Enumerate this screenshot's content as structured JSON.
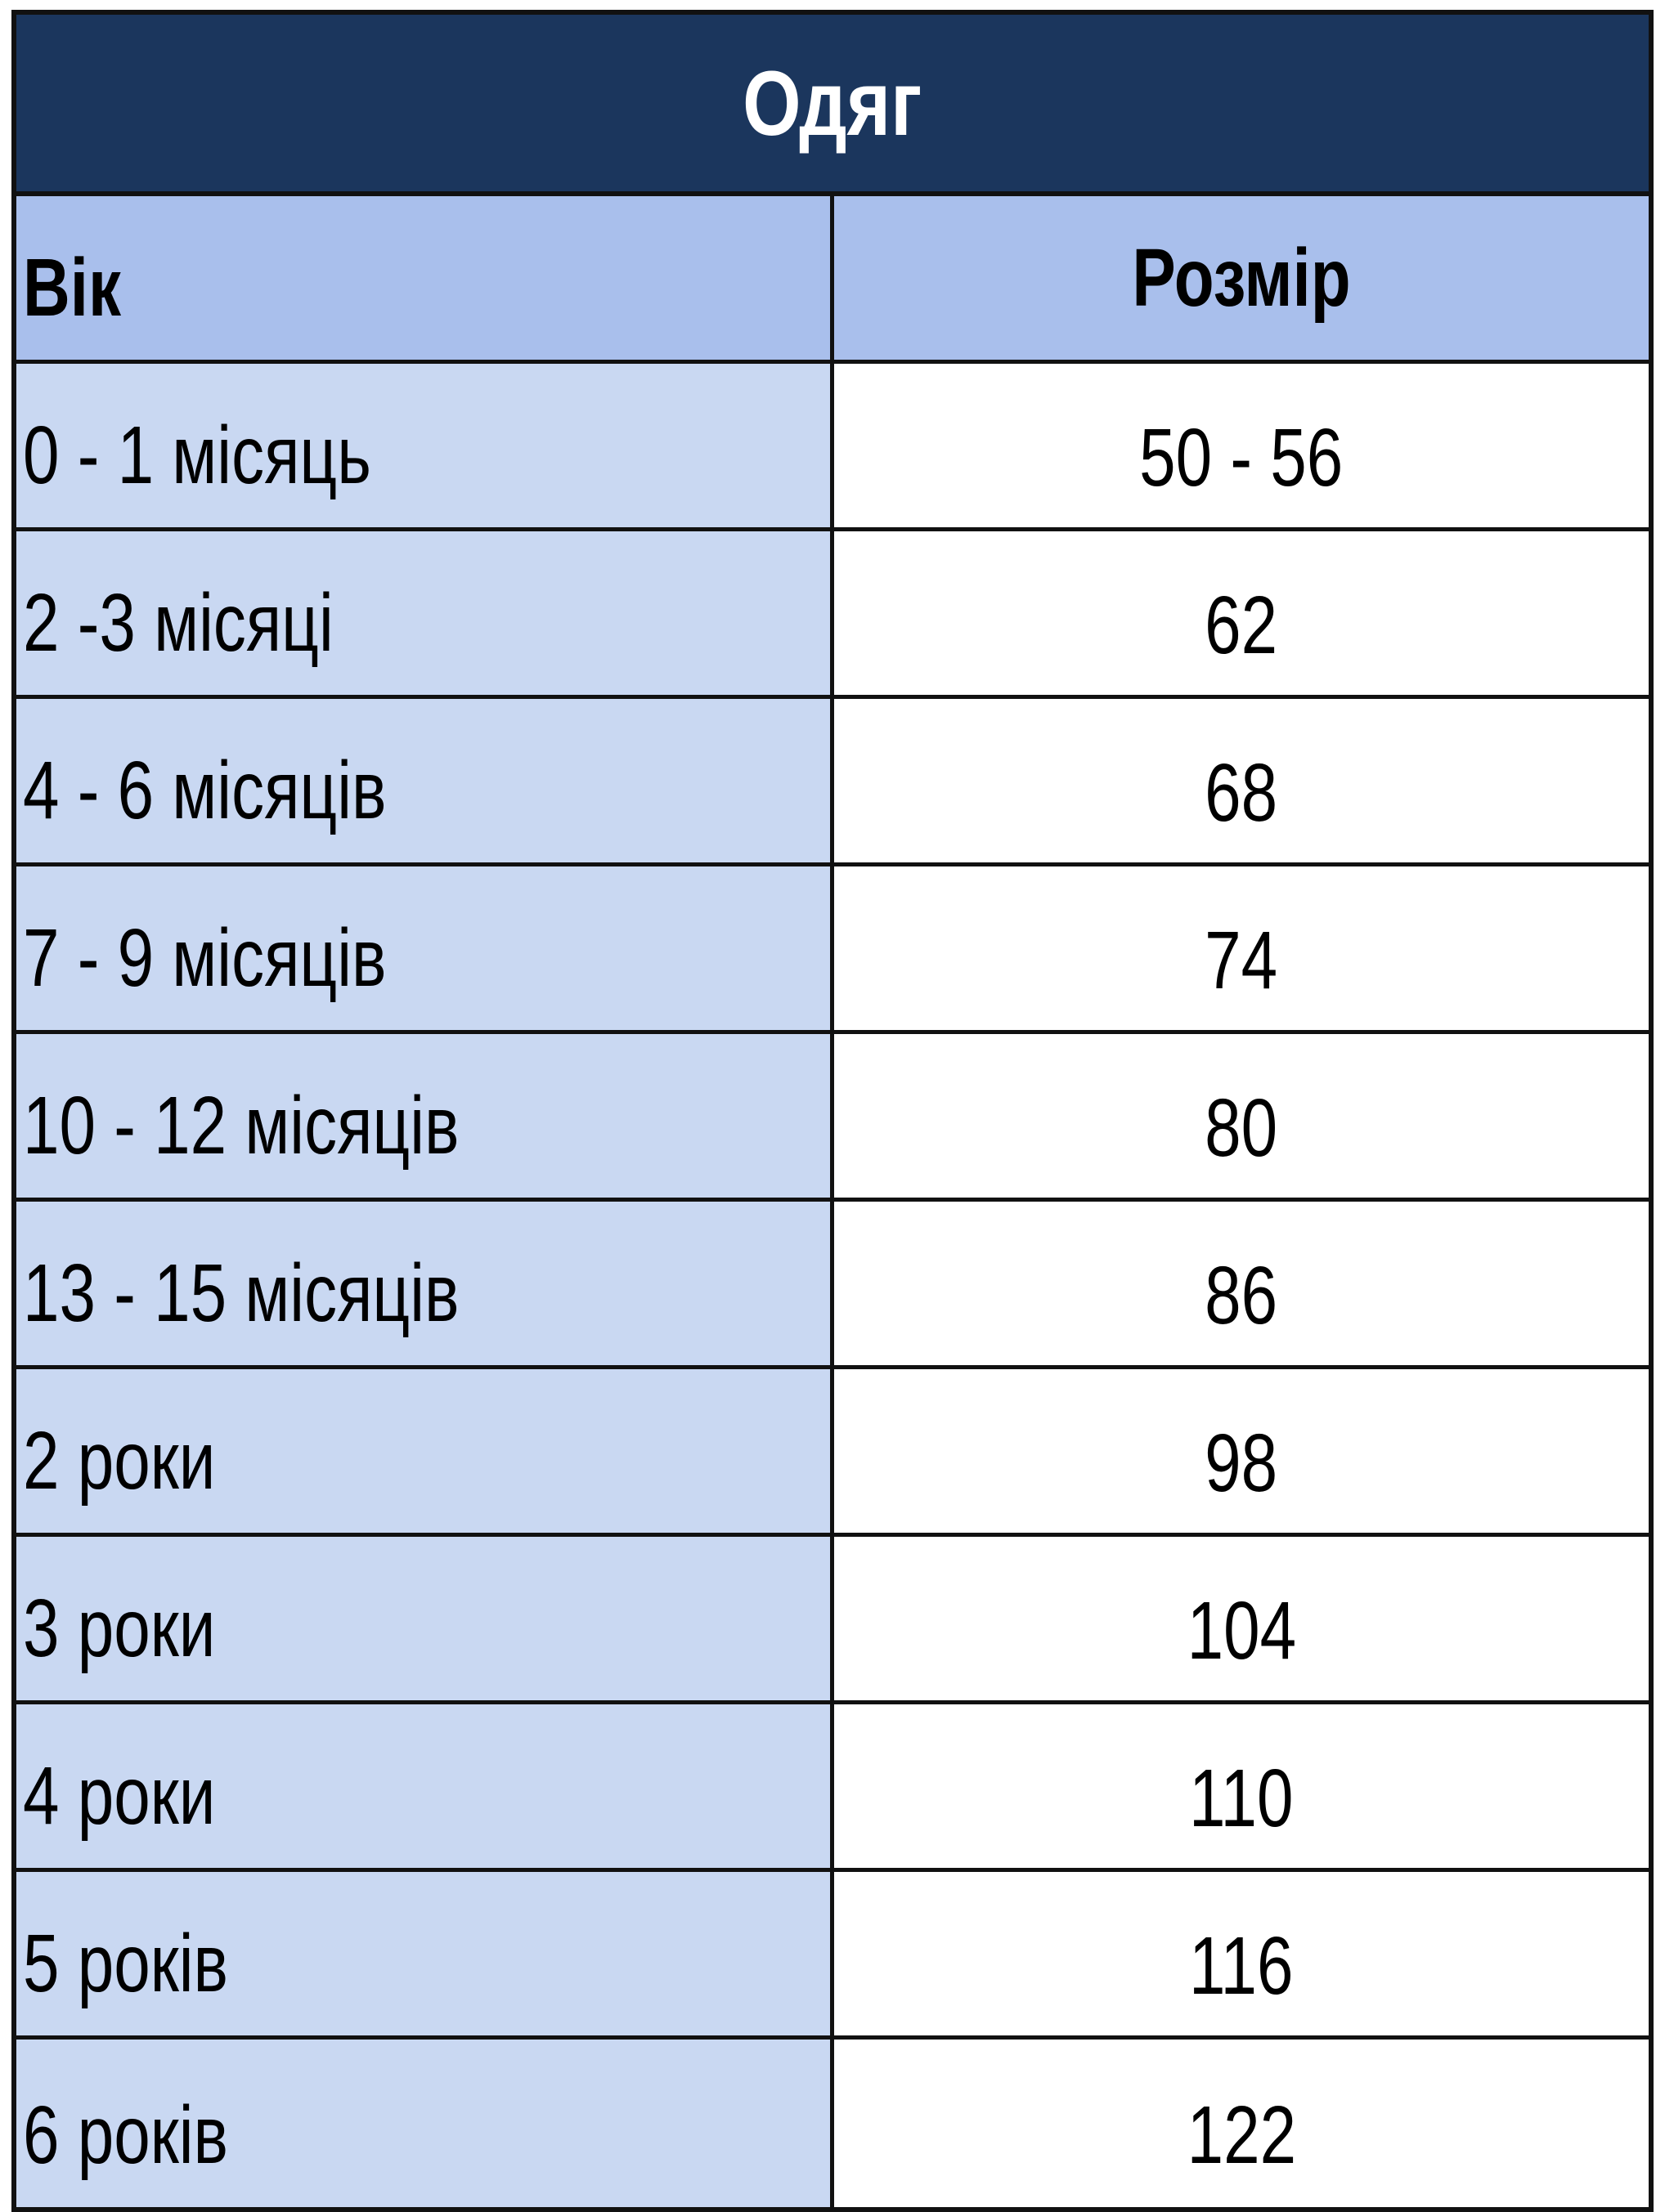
{
  "title": "Одяг",
  "columns": [
    "Вік",
    "Розмір"
  ],
  "rows": [
    {
      "age": "0 - 1 місяць",
      "size": "50 - 56"
    },
    {
      "age": "2 -3 місяці",
      "size": "62"
    },
    {
      "age": "4 - 6 місяців",
      "size": "68"
    },
    {
      "age": "7 - 9 місяців",
      "size": "74"
    },
    {
      "age": "10 - 12 місяців",
      "size": "80"
    },
    {
      "age": "13 - 15 місяців",
      "size": "86"
    },
    {
      "age": "2 роки",
      "size": "98"
    },
    {
      "age": "3 роки",
      "size": "104"
    },
    {
      "age": "4 роки",
      "size": "110"
    },
    {
      "age": "5 років",
      "size": "116"
    },
    {
      "age": "6 років",
      "size": "122"
    }
  ],
  "colors": {
    "title_bg": "#1b365d",
    "header_bg": "#a9bfec",
    "age_col_bg": "#c9d8f2",
    "size_col_bg": "#ffffff"
  }
}
